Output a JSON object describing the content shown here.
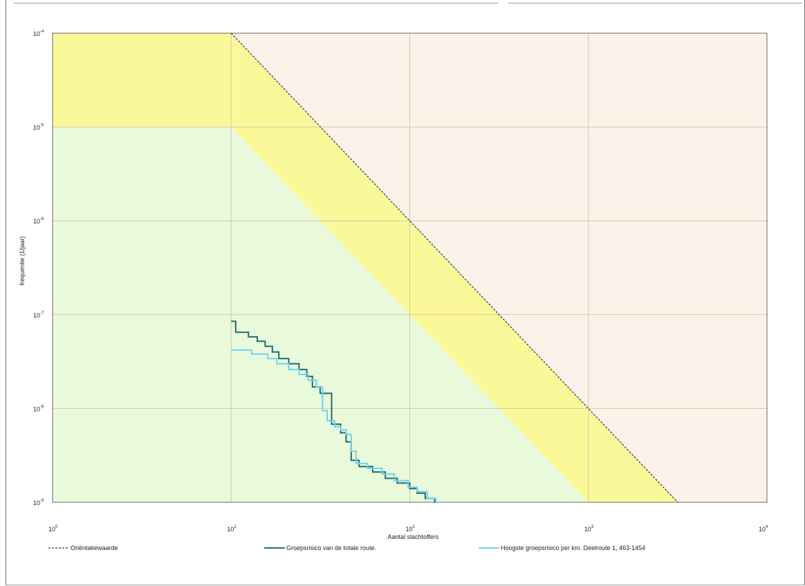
{
  "chart_data": {
    "type": "line",
    "xlabel": "Aantal slachtoffers",
    "ylabel": "frequentie (1/jaar)",
    "x_scale": "log",
    "y_scale": "log",
    "xlim": [
      1,
      10000
    ],
    "ylim": [
      1e-09,
      0.0001
    ],
    "grid": true,
    "legend_position": "bottom",
    "x_ticks": [
      {
        "value": 1,
        "base": "10",
        "exp": "0"
      },
      {
        "value": 10,
        "base": "10",
        "exp": "1"
      },
      {
        "value": 100,
        "base": "10",
        "exp": "2"
      },
      {
        "value": 1000,
        "base": "10",
        "exp": "3"
      },
      {
        "value": 10000,
        "base": "10",
        "exp": "4"
      }
    ],
    "y_ticks": [
      {
        "value": 0.0001,
        "base": "10",
        "exp": "-4"
      },
      {
        "value": 1e-05,
        "base": "10",
        "exp": "-5"
      },
      {
        "value": 1e-06,
        "base": "10",
        "exp": "-6"
      },
      {
        "value": 1e-07,
        "base": "10",
        "exp": "-7"
      },
      {
        "value": 1e-08,
        "base": "10",
        "exp": "-8"
      },
      {
        "value": 1e-09,
        "base": "10",
        "exp": "-9"
      }
    ],
    "zones": {
      "region_colors": {
        "high": "#fbf3ea",
        "mid": "#fbf89a",
        "low": "#e9f9dc"
      },
      "orientation_line": [
        [
          10,
          0.0001
        ],
        [
          3162,
          1e-09
        ]
      ],
      "lower_line": [
        [
          10,
          1e-05
        ],
        [
          1000,
          1e-09
        ]
      ]
    },
    "series": [
      {
        "name": "Oriëntatiewaarde",
        "color": "#333333",
        "style": "dashed",
        "points": [
          [
            10,
            0.0001
          ],
          [
            3162,
            1e-09
          ]
        ]
      },
      {
        "name": "Groepsrisico van de totale route.",
        "color": "#1e6e6e",
        "style": "step",
        "points": [
          [
            10,
            8.5e-08
          ],
          [
            10.6,
            8.5e-08
          ],
          [
            10.6,
            6.5e-08
          ],
          [
            12.5,
            6.5e-08
          ],
          [
            12.5,
            5.8e-08
          ],
          [
            14,
            5.8e-08
          ],
          [
            14,
            5.2e-08
          ],
          [
            15.5,
            5.2e-08
          ],
          [
            15.5,
            4.6e-08
          ],
          [
            17,
            4.6e-08
          ],
          [
            17,
            4e-08
          ],
          [
            18.5,
            4e-08
          ],
          [
            18.5,
            3.4e-08
          ],
          [
            21,
            3.4e-08
          ],
          [
            21,
            3e-08
          ],
          [
            24,
            3e-08
          ],
          [
            24,
            2.6e-08
          ],
          [
            26.5,
            2.6e-08
          ],
          [
            26.5,
            2.2e-08
          ],
          [
            28.5,
            2.2e-08
          ],
          [
            28.5,
            1.7e-08
          ],
          [
            31.5,
            1.7e-08
          ],
          [
            31.5,
            1.45e-08
          ],
          [
            36.5,
            1.45e-08
          ],
          [
            36.5,
            6.8e-09
          ],
          [
            41,
            6.8e-09
          ],
          [
            41,
            5.5e-09
          ],
          [
            44,
            5.5e-09
          ],
          [
            44,
            4.4e-09
          ],
          [
            47,
            4.4e-09
          ],
          [
            47,
            2.8e-09
          ],
          [
            52,
            2.8e-09
          ],
          [
            52,
            2.4e-09
          ],
          [
            62,
            2.4e-09
          ],
          [
            62,
            2.1e-09
          ],
          [
            73,
            2.1e-09
          ],
          [
            73,
            1.8e-09
          ],
          [
            85,
            1.8e-09
          ],
          [
            85,
            1.6e-09
          ],
          [
            100,
            1.6e-09
          ],
          [
            100,
            1.4e-09
          ],
          [
            110,
            1.4e-09
          ],
          [
            110,
            1.25e-09
          ],
          [
            122,
            1.25e-09
          ],
          [
            122,
            1.1e-09
          ],
          [
            138,
            1.1e-09
          ],
          [
            138,
            1e-09
          ],
          [
            150,
            1e-09
          ]
        ]
      },
      {
        "name": "Hoogste groepsrisico per km. Deelroute 1, 463-1454",
        "color": "#6fd3ee",
        "style": "step",
        "points": [
          [
            10,
            4.2e-08
          ],
          [
            13,
            4.2e-08
          ],
          [
            13,
            3.8e-08
          ],
          [
            16,
            3.8e-08
          ],
          [
            16,
            3.4e-08
          ],
          [
            18,
            3.4e-08
          ],
          [
            18,
            3e-08
          ],
          [
            21,
            3e-08
          ],
          [
            21,
            2.6e-08
          ],
          [
            24,
            2.6e-08
          ],
          [
            24,
            2.3e-08
          ],
          [
            27,
            2.3e-08
          ],
          [
            27,
            2e-08
          ],
          [
            30,
            2e-08
          ],
          [
            30,
            1.7e-08
          ],
          [
            32.5,
            1.7e-08
          ],
          [
            32.5,
            9.5e-09
          ],
          [
            34.5,
            9.5e-09
          ],
          [
            34.5,
            7.4e-09
          ],
          [
            38,
            7.4e-09
          ],
          [
            38,
            6.4e-09
          ],
          [
            41,
            6.4e-09
          ],
          [
            41,
            5.9e-09
          ],
          [
            44,
            5.9e-09
          ],
          [
            44,
            5.3e-09
          ],
          [
            47,
            5.3e-09
          ],
          [
            47,
            3.5e-09
          ],
          [
            50,
            3.5e-09
          ],
          [
            50,
            2.6e-09
          ],
          [
            58,
            2.6e-09
          ],
          [
            58,
            2.3e-09
          ],
          [
            70,
            2.3e-09
          ],
          [
            70,
            2e-09
          ],
          [
            82,
            2e-09
          ],
          [
            82,
            1.7e-09
          ],
          [
            98,
            1.7e-09
          ],
          [
            98,
            1.45e-09
          ],
          [
            110,
            1.45e-09
          ],
          [
            110,
            1.3e-09
          ],
          [
            125,
            1.3e-09
          ],
          [
            125,
            1.1e-09
          ],
          [
            140,
            1.1e-09
          ],
          [
            140,
            1e-09
          ],
          [
            150,
            1e-09
          ]
        ]
      }
    ]
  }
}
